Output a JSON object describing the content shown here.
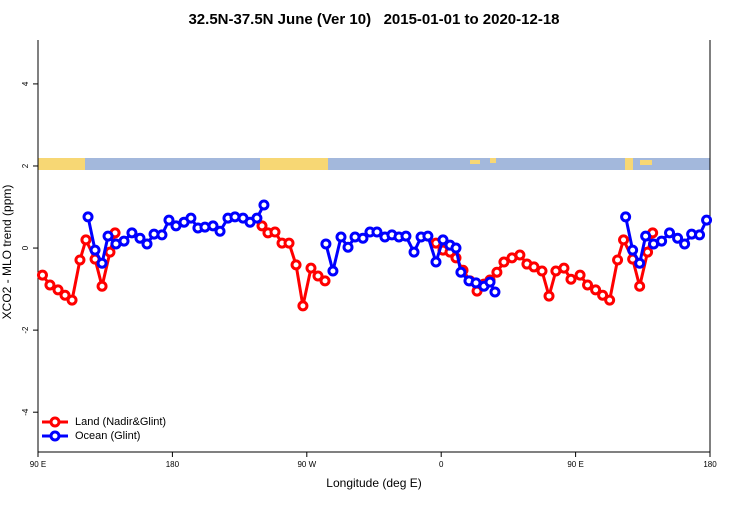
{
  "chart_data": {
    "type": "line",
    "title": "32.5N-37.5N June (Ver 10)   2015-01-01 to 2020-12-18",
    "x_label": "Longitude (deg E)",
    "y_label": "XCO2 - MLO trend (ppm)",
    "xlim": [
      90,
      540
    ],
    "ylim": [
      -4.97,
      5.07
    ],
    "xticks": [
      {
        "value": 90,
        "label": "90 E"
      },
      {
        "value": 180,
        "label": "180"
      },
      {
        "value": 270,
        "label": "90 W"
      },
      {
        "value": 360,
        "label": "0"
      },
      {
        "value": 450,
        "label": "90 E"
      },
      {
        "value": 540,
        "label": "180"
      }
    ],
    "yticks": [
      -4,
      -2,
      0,
      2,
      4
    ],
    "legend": "bottom-left",
    "series": [
      {
        "name": "Land (Nadir&Glint)",
        "color": "#ff0000",
        "x": [
          93,
          98,
          103.4,
          108.1,
          112.8,
          118.1,
          122.1,
          128.2,
          132.9,
          138.2,
          141.6,
          null,
          240,
          244,
          248.7,
          253.4,
          258.1,
          262.8,
          267.4,
          272.8,
          277.5,
          282.2,
          null,
          356.5,
          361.2,
          365.9,
          369.9,
          374.6,
          379.3,
          384,
          388.6,
          392.7,
          397.3,
          402,
          407.4,
          412.7,
          417.4,
          422.1,
          427.5,
          432.2,
          436.8,
          442.2,
          446.9,
          453,
          458,
          463.4,
          468.1,
          472.8,
          478.1,
          482.1,
          488.2,
          492.9,
          498.2,
          501.6
        ],
        "values": [
          -0.66,
          -0.9,
          -1.02,
          -1.15,
          -1.27,
          -0.29,
          0.2,
          -0.27,
          -0.93,
          -0.1,
          0.37,
          null,
          0.54,
          0.37,
          0.39,
          0.12,
          0.12,
          -0.41,
          -1.41,
          -0.49,
          -0.68,
          -0.8,
          null,
          0.12,
          -0.05,
          -0.1,
          -0.24,
          -0.54,
          -0.8,
          -1.05,
          -0.88,
          -0.78,
          -0.59,
          -0.34,
          -0.24,
          -0.17,
          -0.39,
          -0.46,
          -0.56,
          -1.17,
          -0.56,
          -0.49,
          -0.76,
          -0.66,
          -0.9,
          -1.02,
          -1.15,
          -1.27,
          -0.29,
          0.2,
          -0.27,
          -0.93,
          -0.1,
          0.37
        ]
      },
      {
        "name": "Ocean (Glint)",
        "color": "#0000ff",
        "x": [
          123.5,
          128.2,
          132.9,
          136.9,
          142.2,
          147.6,
          152.9,
          158.3,
          163,
          167.7,
          173,
          177.7,
          182.4,
          187.8,
          192.4,
          197.1,
          201.8,
          207.2,
          211.9,
          217.2,
          221.9,
          227.3,
          232,
          236.6,
          241.3,
          null,
          282.8,
          287.5,
          292.9,
          297.6,
          302.3,
          307.6,
          312.3,
          317,
          322.3,
          327,
          331.7,
          336.4,
          341.8,
          346.5,
          351.1,
          356.5,
          361.2,
          365.9,
          369.9,
          373.2,
          378.6,
          383.3,
          388.6,
          392.7,
          396,
          null,
          483.5,
          488.2,
          492.9,
          496.9,
          502.2,
          507.6,
          512.9,
          518.3,
          523,
          527.7,
          533,
          537.7
        ],
        "values": [
          0.76,
          -0.05,
          -0.37,
          0.29,
          0.1,
          0.17,
          0.37,
          0.24,
          0.1,
          0.34,
          0.32,
          0.68,
          0.54,
          0.63,
          0.73,
          0.49,
          0.51,
          0.54,
          0.41,
          0.73,
          0.76,
          0.73,
          0.63,
          0.73,
          1.05,
          null,
          0.1,
          -0.56,
          0.27,
          0.02,
          0.27,
          0.24,
          0.39,
          0.39,
          0.27,
          0.32,
          0.27,
          0.29,
          -0.1,
          0.27,
          0.29,
          -0.34,
          0.2,
          0.07,
          0,
          -0.59,
          -0.8,
          -0.85,
          -0.93,
          -0.83,
          -1.07,
          null,
          0.76,
          -0.05,
          -0.37,
          0.29,
          0.1,
          0.17,
          0.37,
          0.24,
          0.1,
          0.34,
          0.32,
          0.68
        ]
      }
    ]
  }
}
